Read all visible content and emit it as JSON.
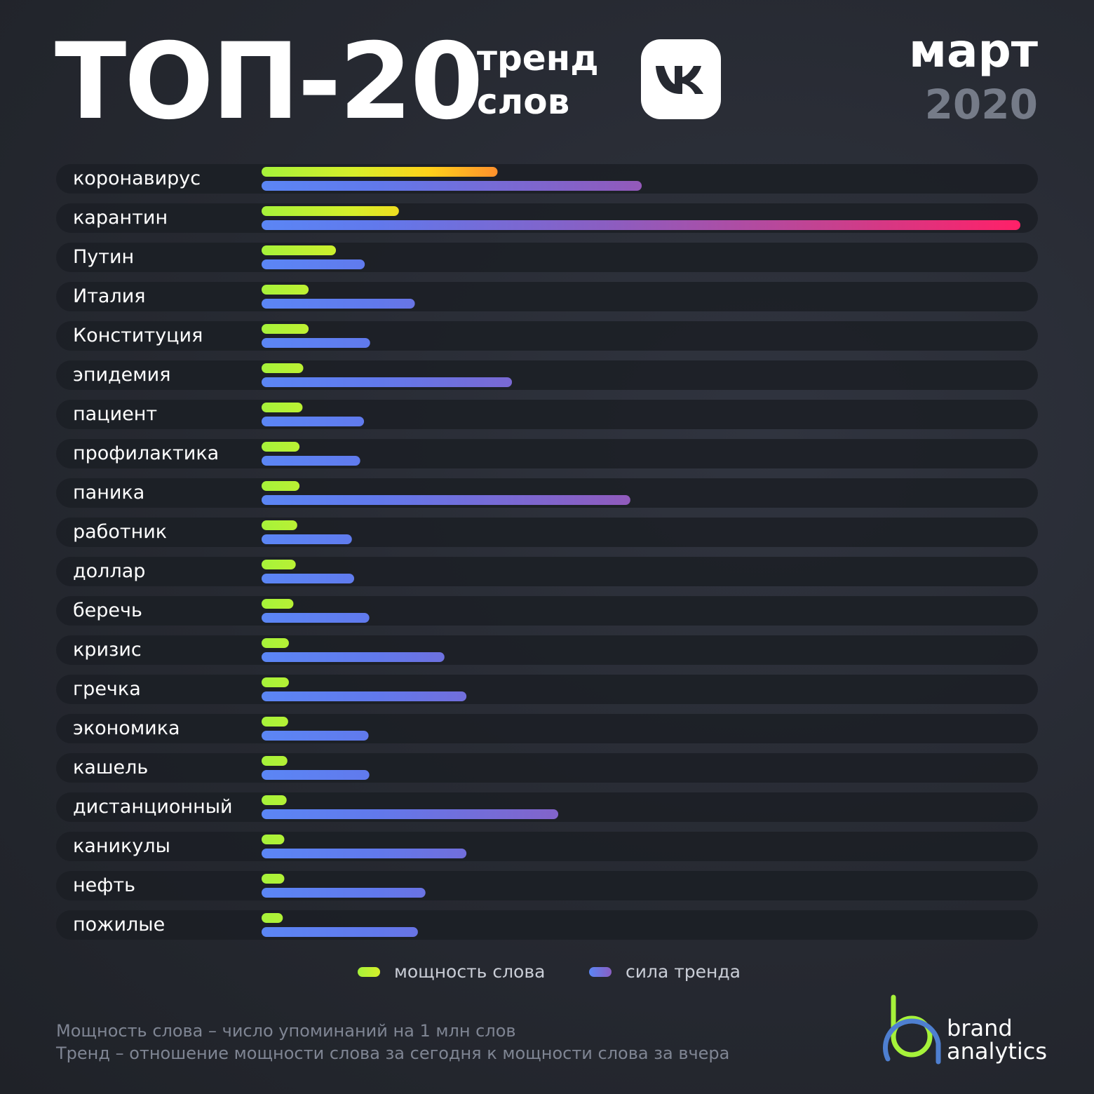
{
  "header": {
    "title": "ТОП-20",
    "subtitle_line1": "тренд",
    "subtitle_line2": "слов",
    "month": "март",
    "year": "2020",
    "logo_icon": "vk-logo-icon"
  },
  "chart_data": {
    "type": "bar",
    "orientation": "horizontal",
    "categories": [
      "коронавирус",
      "карантин",
      "Путин",
      "Италия",
      "Конституция",
      "эпидемия",
      "пациент",
      "профилактика",
      "паника",
      "работник",
      "доллар",
      "беречь",
      "кризис",
      "гречка",
      "экономика",
      "кашель",
      "дистанционный",
      "каникулы",
      "нефть",
      "пожилые"
    ],
    "series": [
      {
        "name": "мощность слова",
        "color": "#a6f23a",
        "values": [
          0.311,
          0.181,
          0.098,
          0.062,
          0.062,
          0.055,
          0.054,
          0.05,
          0.05,
          0.047,
          0.045,
          0.042,
          0.036,
          0.036,
          0.035,
          0.034,
          0.033,
          0.03,
          0.03,
          0.028
        ]
      },
      {
        "name": "сила тренда",
        "color": "#5b86f5",
        "values": [
          0.501,
          1.0,
          0.136,
          0.202,
          0.143,
          0.33,
          0.135,
          0.13,
          0.486,
          0.119,
          0.122,
          0.142,
          0.241,
          0.27,
          0.141,
          0.142,
          0.391,
          0.27,
          0.216,
          0.206
        ]
      }
    ],
    "value_scale": "relative, fraction of the longest bar",
    "grid": false,
    "legend_position": "bottom-center"
  },
  "legend": {
    "items": [
      {
        "label": "мощность слова",
        "color": "#a6f23a"
      },
      {
        "label": "сила тренда",
        "color": "#5b86f5"
      }
    ]
  },
  "footnotes": [
    "Мощность слова – число упоминаний на 1 млн слов",
    "Тренд – отношение мощности слова  за сегодня к мощности слова за вчера"
  ],
  "brand": {
    "line1": "brand",
    "line2": "analytics",
    "logo_icon": "brand-analytics-logo-icon"
  }
}
